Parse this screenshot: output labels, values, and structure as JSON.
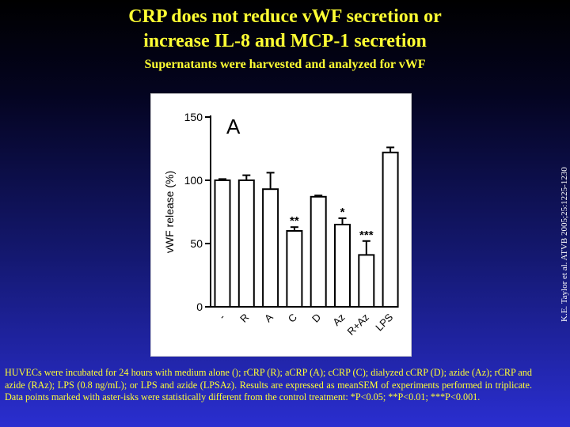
{
  "slide": {
    "title_line1": "CRP does not reduce vWF secretion or",
    "title_line2": "increase IL-8 and MCP-1 secretion",
    "subtitle": "Supernatants were harvested and analyzed for vWF",
    "caption": "HUVECs were incubated for 24 hours with medium alone (); rCRP (R); aCRP (A); cCRP (C); dialyzed cCRP (D); azide (Az); rCRP and azide (RAz); LPS (0.8 ng/mL); or LPS and azide (LPSAz). Results are expressed as meanSEM of experiments performed in triplicate. Data points marked with aster-isks were statistically different from the control treatment: *P<0.05; **P<0.01; ***P<0.001.",
    "citation": "K.E. Taylor et al. ATVB 2005;25:1225-1230",
    "title_color": "#ffff33"
  },
  "chart_data": {
    "type": "bar",
    "panel_label": "A",
    "ylabel": "vWF release (%)",
    "ylim": [
      0,
      150
    ],
    "yticks": [
      0,
      50,
      100,
      150
    ],
    "categories": [
      "-",
      "R",
      "A",
      "C",
      "D",
      "Az",
      "R+Az",
      "LPS"
    ],
    "values": [
      100,
      100,
      93,
      60,
      87,
      65,
      41,
      122
    ],
    "errors": [
      1,
      4,
      13,
      3,
      1,
      5,
      11,
      4
    ],
    "significance": [
      "",
      "",
      "",
      "**",
      "",
      "*",
      "***",
      ""
    ],
    "grid": false,
    "bar_fill": "#ffffff",
    "bar_stroke": "#000000"
  }
}
